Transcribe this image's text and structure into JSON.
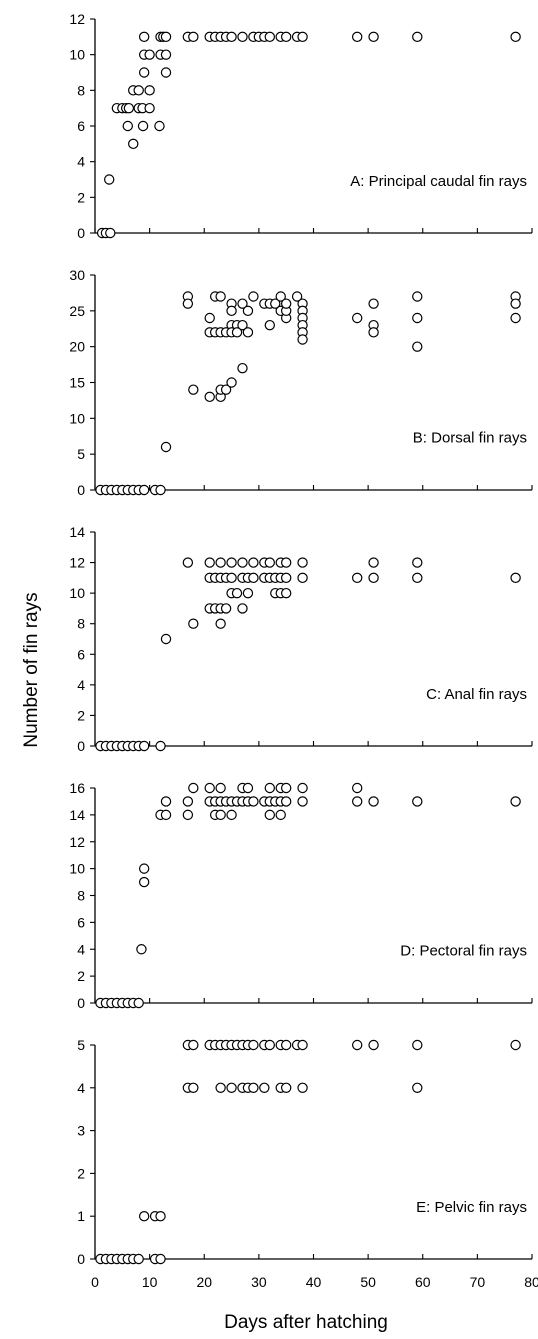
{
  "figure": {
    "ylabel": "Number of fin rays",
    "xlabel": "Days after hatching",
    "x_tick_labels": [
      "0",
      "10",
      "20",
      "30",
      "40",
      "50",
      "60",
      "70",
      "80"
    ]
  },
  "chart_data": [
    {
      "type": "scatter",
      "title": "A: Principal caudal fin rays",
      "xlim": [
        0,
        80
      ],
      "ylim": [
        0,
        12
      ],
      "y_ticks": [
        0,
        2,
        4,
        6,
        8,
        10,
        12
      ],
      "points": [
        [
          1.3,
          0
        ],
        [
          2,
          0
        ],
        [
          2.6,
          3
        ],
        [
          2.8,
          0
        ],
        [
          4,
          7
        ],
        [
          5,
          7
        ],
        [
          5.7,
          7
        ],
        [
          6,
          6
        ],
        [
          6.2,
          7
        ],
        [
          7,
          8
        ],
        [
          7,
          5
        ],
        [
          8,
          7
        ],
        [
          8,
          8
        ],
        [
          8.7,
          7
        ],
        [
          8.8,
          6
        ],
        [
          9,
          9
        ],
        [
          9,
          10
        ],
        [
          9,
          11
        ],
        [
          10,
          8
        ],
        [
          10,
          10
        ],
        [
          10,
          7
        ],
        [
          11.8,
          6
        ],
        [
          12,
          11
        ],
        [
          12,
          10
        ],
        [
          12.5,
          11
        ],
        [
          13,
          10
        ],
        [
          13,
          9
        ],
        [
          13,
          11
        ],
        [
          17,
          11
        ],
        [
          18,
          11
        ],
        [
          21,
          11
        ],
        [
          22,
          11
        ],
        [
          23,
          11
        ],
        [
          24,
          11
        ],
        [
          25,
          11
        ],
        [
          27,
          11
        ],
        [
          29,
          11
        ],
        [
          30,
          11
        ],
        [
          31,
          11
        ],
        [
          32,
          11
        ],
        [
          34,
          11
        ],
        [
          35,
          11
        ],
        [
          37,
          11
        ],
        [
          38,
          11
        ],
        [
          48,
          11
        ],
        [
          51,
          11
        ],
        [
          59,
          11
        ],
        [
          77,
          11
        ]
      ]
    },
    {
      "type": "scatter",
      "title": "B: Dorsal fin rays",
      "xlim": [
        0,
        80
      ],
      "ylim": [
        0,
        30
      ],
      "y_ticks": [
        0,
        5,
        10,
        15,
        20,
        25,
        30
      ],
      "points": [
        [
          1,
          0
        ],
        [
          2,
          0
        ],
        [
          3,
          0
        ],
        [
          4,
          0
        ],
        [
          5,
          0
        ],
        [
          6,
          0
        ],
        [
          7,
          0
        ],
        [
          8,
          0
        ],
        [
          9,
          0
        ],
        [
          11,
          0
        ],
        [
          12,
          0
        ],
        [
          13,
          6
        ],
        [
          17,
          27
        ],
        [
          17,
          26
        ],
        [
          18,
          14
        ],
        [
          21,
          13
        ],
        [
          21,
          22
        ],
        [
          21,
          24
        ],
        [
          22,
          27
        ],
        [
          22,
          22
        ],
        [
          23,
          27
        ],
        [
          23,
          13
        ],
        [
          23,
          14
        ],
        [
          23,
          22
        ],
        [
          24,
          22
        ],
        [
          24,
          14
        ],
        [
          25,
          15
        ],
        [
          25,
          26
        ],
        [
          25,
          25
        ],
        [
          25,
          23
        ],
        [
          25,
          22
        ],
        [
          26,
          23
        ],
        [
          26,
          22
        ],
        [
          27,
          17
        ],
        [
          27,
          26
        ],
        [
          27,
          23
        ],
        [
          28,
          25
        ],
        [
          28,
          22
        ],
        [
          29,
          27
        ],
        [
          31,
          26
        ],
        [
          32,
          26
        ],
        [
          32,
          23
        ],
        [
          33,
          26
        ],
        [
          34,
          25
        ],
        [
          34,
          27
        ],
        [
          35,
          24
        ],
        [
          35,
          25
        ],
        [
          35,
          26
        ],
        [
          37,
          27
        ],
        [
          38,
          26
        ],
        [
          38,
          25
        ],
        [
          38,
          24
        ],
        [
          38,
          23
        ],
        [
          38,
          22
        ],
        [
          38,
          21
        ],
        [
          48,
          24
        ],
        [
          51,
          26
        ],
        [
          51,
          23
        ],
        [
          51,
          22
        ],
        [
          59,
          27
        ],
        [
          59,
          24
        ],
        [
          59,
          20
        ],
        [
          77,
          27
        ],
        [
          77,
          26
        ],
        [
          77,
          24
        ]
      ]
    },
    {
      "type": "scatter",
      "title": "C: Anal fin rays",
      "xlim": [
        0,
        80
      ],
      "ylim": [
        0,
        14
      ],
      "y_ticks": [
        0,
        2,
        4,
        6,
        8,
        10,
        12,
        14
      ],
      "points": [
        [
          1,
          0
        ],
        [
          2,
          0
        ],
        [
          3,
          0
        ],
        [
          4,
          0
        ],
        [
          5,
          0
        ],
        [
          6,
          0
        ],
        [
          7,
          0
        ],
        [
          8,
          0
        ],
        [
          9,
          0
        ],
        [
          12,
          0
        ],
        [
          13,
          7
        ],
        [
          17,
          12
        ],
        [
          18,
          8
        ],
        [
          21,
          9
        ],
        [
          21,
          11
        ],
        [
          21,
          12
        ],
        [
          22,
          11
        ],
        [
          22,
          9
        ],
        [
          23,
          12
        ],
        [
          23,
          11
        ],
        [
          23,
          9
        ],
        [
          23,
          8
        ],
        [
          24,
          11
        ],
        [
          24,
          9
        ],
        [
          25,
          12
        ],
        [
          25,
          11
        ],
        [
          25,
          10
        ],
        [
          26,
          10
        ],
        [
          27,
          12
        ],
        [
          27,
          11
        ],
        [
          27,
          9
        ],
        [
          28,
          11
        ],
        [
          28,
          10
        ],
        [
          29,
          12
        ],
        [
          29,
          11
        ],
        [
          31,
          12
        ],
        [
          31,
          11
        ],
        [
          32,
          12
        ],
        [
          32,
          11
        ],
        [
          33,
          10
        ],
        [
          33,
          11
        ],
        [
          34,
          12
        ],
        [
          34,
          11
        ],
        [
          34,
          10
        ],
        [
          35,
          12
        ],
        [
          35,
          11
        ],
        [
          35,
          10
        ],
        [
          38,
          12
        ],
        [
          38,
          11
        ],
        [
          48,
          11
        ],
        [
          51,
          12
        ],
        [
          51,
          11
        ],
        [
          59,
          12
        ],
        [
          59,
          11
        ],
        [
          77,
          11
        ]
      ]
    },
    {
      "type": "scatter",
      "title": "D: Pectoral fin rays",
      "xlim": [
        0,
        80
      ],
      "ylim": [
        0,
        16
      ],
      "y_ticks": [
        0,
        2,
        4,
        6,
        8,
        10,
        12,
        14,
        16
      ],
      "points": [
        [
          1,
          0
        ],
        [
          2,
          0
        ],
        [
          3,
          0
        ],
        [
          4,
          0
        ],
        [
          5,
          0
        ],
        [
          6,
          0
        ],
        [
          7,
          0
        ],
        [
          8,
          0
        ],
        [
          8.5,
          4
        ],
        [
          9,
          9
        ],
        [
          9,
          10
        ],
        [
          12,
          14
        ],
        [
          13,
          14
        ],
        [
          13,
          15
        ],
        [
          17,
          15
        ],
        [
          17,
          14
        ],
        [
          18,
          16
        ],
        [
          21,
          16
        ],
        [
          21,
          15
        ],
        [
          22,
          15
        ],
        [
          22,
          14
        ],
        [
          23,
          16
        ],
        [
          23,
          15
        ],
        [
          23,
          14
        ],
        [
          24,
          15
        ],
        [
          25,
          15
        ],
        [
          25,
          14
        ],
        [
          26,
          15
        ],
        [
          27,
          16
        ],
        [
          27,
          15
        ],
        [
          28,
          16
        ],
        [
          28,
          15
        ],
        [
          29,
          15
        ],
        [
          31,
          15
        ],
        [
          32,
          16
        ],
        [
          32,
          15
        ],
        [
          32,
          14
        ],
        [
          33,
          15
        ],
        [
          34,
          16
        ],
        [
          34,
          15
        ],
        [
          34,
          14
        ],
        [
          35,
          16
        ],
        [
          35,
          15
        ],
        [
          38,
          16
        ],
        [
          38,
          15
        ],
        [
          48,
          16
        ],
        [
          48,
          15
        ],
        [
          51,
          15
        ],
        [
          59,
          15
        ],
        [
          77,
          15
        ]
      ]
    },
    {
      "type": "scatter",
      "title": "E: Pelvic fin rays",
      "xlim": [
        0,
        80
      ],
      "ylim": [
        0,
        5
      ],
      "y_ticks": [
        0,
        1,
        2,
        3,
        4,
        5
      ],
      "points": [
        [
          1,
          0
        ],
        [
          2,
          0
        ],
        [
          3,
          0
        ],
        [
          4,
          0
        ],
        [
          5,
          0
        ],
        [
          6,
          0
        ],
        [
          7,
          0
        ],
        [
          8,
          0
        ],
        [
          9,
          1
        ],
        [
          11,
          0
        ],
        [
          11,
          1
        ],
        [
          12,
          0
        ],
        [
          12,
          1
        ],
        [
          17,
          5
        ],
        [
          17,
          4
        ],
        [
          18,
          5
        ],
        [
          18,
          4
        ],
        [
          21,
          5
        ],
        [
          22,
          5
        ],
        [
          23,
          5
        ],
        [
          23,
          4
        ],
        [
          24,
          5
        ],
        [
          25,
          5
        ],
        [
          25,
          4
        ],
        [
          26,
          5
        ],
        [
          27,
          5
        ],
        [
          27,
          4
        ],
        [
          28,
          5
        ],
        [
          28,
          4
        ],
        [
          29,
          5
        ],
        [
          29,
          4
        ],
        [
          31,
          5
        ],
        [
          31,
          4
        ],
        [
          32,
          5
        ],
        [
          34,
          5
        ],
        [
          34,
          4
        ],
        [
          35,
          5
        ],
        [
          35,
          4
        ],
        [
          37,
          5
        ],
        [
          38,
          5
        ],
        [
          38,
          4
        ],
        [
          48,
          5
        ],
        [
          51,
          5
        ],
        [
          59,
          5
        ],
        [
          59,
          4
        ],
        [
          77,
          5
        ]
      ]
    }
  ]
}
